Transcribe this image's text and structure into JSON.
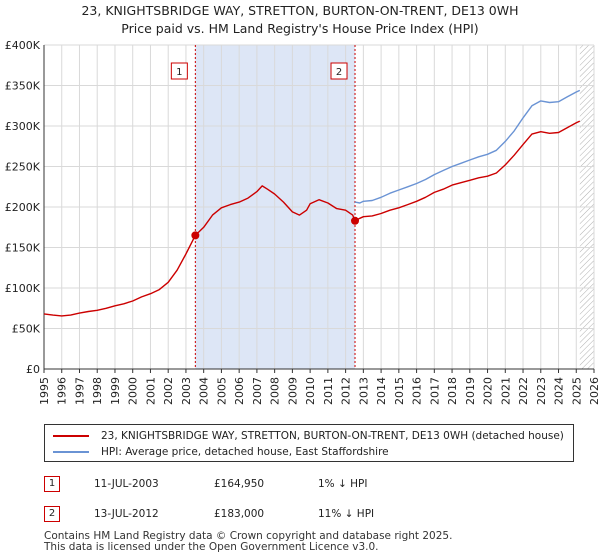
{
  "title": {
    "line1": "23, KNIGHTSBRIDGE WAY, STRETTON, BURTON-ON-TRENT, DE13 0WH",
    "line2": "Price paid vs. HM Land Registry's House Price Index (HPI)"
  },
  "colors": {
    "property": "#cc0000",
    "hpi": "#6a93d4",
    "shade": "#dde6f6",
    "grid": "#d9d9d9",
    "marker_line": "#cc0000"
  },
  "chart_data": {
    "type": "line",
    "x_range": [
      1995,
      2026
    ],
    "ylim": [
      0,
      400000
    ],
    "y_ticks": [
      0,
      50000,
      100000,
      150000,
      200000,
      250000,
      300000,
      350000,
      400000
    ],
    "y_tick_labels": [
      "£0",
      "£50K",
      "£100K",
      "£150K",
      "£200K",
      "£250K",
      "£300K",
      "£350K",
      "£400K"
    ],
    "x_ticks": [
      1995,
      1996,
      1997,
      1998,
      1999,
      2000,
      2001,
      2002,
      2003,
      2004,
      2005,
      2006,
      2007,
      2008,
      2009,
      2010,
      2011,
      2012,
      2013,
      2014,
      2015,
      2016,
      2017,
      2018,
      2019,
      2020,
      2021,
      2022,
      2023,
      2024,
      2025,
      2026
    ],
    "x_tick_labels": [
      "1995",
      "1996",
      "1997",
      "1998",
      "1999",
      "2000",
      "2001",
      "2002",
      "2003",
      "2004",
      "2005",
      "2006",
      "2007",
      "2008",
      "2009",
      "2010",
      "2011",
      "2012",
      "2013",
      "2014",
      "2015",
      "2016",
      "2017",
      "2018",
      "2019",
      "2020",
      "2021",
      "2022",
      "2023",
      "2024",
      "2025",
      "2026"
    ],
    "shaded_period": [
      2003.53,
      2012.53
    ],
    "hatched_from": 2025.2,
    "series": [
      {
        "name": "23, KNIGHTSBRIDGE WAY, STRETTON, BURTON-ON-TRENT, DE13 0WH (detached house)",
        "color": "#cc0000",
        "points": [
          [
            1995.0,
            68000
          ],
          [
            1995.5,
            66500
          ],
          [
            1996.0,
            65500
          ],
          [
            1996.5,
            66500
          ],
          [
            1997.0,
            69000
          ],
          [
            1997.5,
            71000
          ],
          [
            1998.0,
            72500
          ],
          [
            1998.5,
            75000
          ],
          [
            1999.0,
            78000
          ],
          [
            1999.5,
            80500
          ],
          [
            2000.0,
            84000
          ],
          [
            2000.5,
            89000
          ],
          [
            2001.0,
            93000
          ],
          [
            2001.5,
            98000
          ],
          [
            2002.0,
            107000
          ],
          [
            2002.5,
            122000
          ],
          [
            2003.0,
            142000
          ],
          [
            2003.53,
            164950
          ],
          [
            2004.0,
            175000
          ],
          [
            2004.5,
            190000
          ],
          [
            2005.0,
            199000
          ],
          [
            2005.5,
            203000
          ],
          [
            2006.0,
            206000
          ],
          [
            2006.5,
            211000
          ],
          [
            2007.0,
            219000
          ],
          [
            2007.3,
            226000
          ],
          [
            2007.6,
            222000
          ],
          [
            2008.0,
            216000
          ],
          [
            2008.5,
            206000
          ],
          [
            2009.0,
            194000
          ],
          [
            2009.4,
            190000
          ],
          [
            2009.8,
            196000
          ],
          [
            2010.0,
            204000
          ],
          [
            2010.5,
            209000
          ],
          [
            2011.0,
            205000
          ],
          [
            2011.5,
            198000
          ],
          [
            2012.0,
            196000
          ],
          [
            2012.4,
            190000
          ],
          [
            2012.53,
            183000
          ],
          [
            2012.8,
            186000
          ],
          [
            2013.0,
            188000
          ],
          [
            2013.5,
            189000
          ],
          [
            2014.0,
            192000
          ],
          [
            2014.5,
            196000
          ],
          [
            2015.0,
            199000
          ],
          [
            2015.5,
            203000
          ],
          [
            2016.0,
            207000
          ],
          [
            2016.5,
            212000
          ],
          [
            2017.0,
            218000
          ],
          [
            2017.5,
            222000
          ],
          [
            2018.0,
            227000
          ],
          [
            2018.5,
            230000
          ],
          [
            2019.0,
            233000
          ],
          [
            2019.5,
            236000
          ],
          [
            2020.0,
            238000
          ],
          [
            2020.5,
            242000
          ],
          [
            2021.0,
            252000
          ],
          [
            2021.5,
            264000
          ],
          [
            2022.0,
            277000
          ],
          [
            2022.5,
            290000
          ],
          [
            2023.0,
            293000
          ],
          [
            2023.5,
            291000
          ],
          [
            2024.0,
            292000
          ],
          [
            2024.5,
            298000
          ],
          [
            2025.0,
            304000
          ],
          [
            2025.2,
            306000
          ]
        ]
      },
      {
        "name": "HPI: Average price, detached house, East Staffordshire",
        "color": "#6a93d4",
        "points": [
          [
            2012.53,
            206000
          ],
          [
            2012.8,
            205000
          ],
          [
            2013.0,
            207000
          ],
          [
            2013.5,
            208000
          ],
          [
            2014.0,
            212000
          ],
          [
            2014.5,
            217000
          ],
          [
            2015.0,
            221000
          ],
          [
            2015.5,
            225000
          ],
          [
            2016.0,
            229000
          ],
          [
            2016.5,
            234000
          ],
          [
            2017.0,
            240000
          ],
          [
            2017.5,
            245000
          ],
          [
            2018.0,
            250000
          ],
          [
            2018.5,
            254000
          ],
          [
            2019.0,
            258000
          ],
          [
            2019.5,
            262000
          ],
          [
            2020.0,
            265000
          ],
          [
            2020.5,
            270000
          ],
          [
            2021.0,
            281000
          ],
          [
            2021.5,
            294000
          ],
          [
            2022.0,
            310000
          ],
          [
            2022.5,
            325000
          ],
          [
            2023.0,
            331000
          ],
          [
            2023.5,
            329000
          ],
          [
            2024.0,
            330000
          ],
          [
            2024.5,
            336000
          ],
          [
            2025.0,
            342000
          ],
          [
            2025.2,
            344000
          ]
        ]
      }
    ],
    "markers": [
      {
        "label": "1",
        "x": 2003.53,
        "y": 164950
      },
      {
        "label": "2",
        "x": 2012.53,
        "y": 183000
      }
    ]
  },
  "legend": {
    "property_label": "23, KNIGHTSBRIDGE WAY, STRETTON, BURTON-ON-TRENT, DE13 0WH (detached house)",
    "hpi_label": "HPI: Average price, detached house, East Staffordshire"
  },
  "sales": [
    {
      "num": "1",
      "date": "11-JUL-2003",
      "price": "£164,950",
      "hpi": "1% ↓ HPI"
    },
    {
      "num": "2",
      "date": "13-JUL-2012",
      "price": "£183,000",
      "hpi": "11% ↓ HPI"
    }
  ],
  "footer": {
    "line1": "Contains HM Land Registry data © Crown copyright and database right 2025.",
    "line2": "This data is licensed under the Open Government Licence v3.0."
  }
}
